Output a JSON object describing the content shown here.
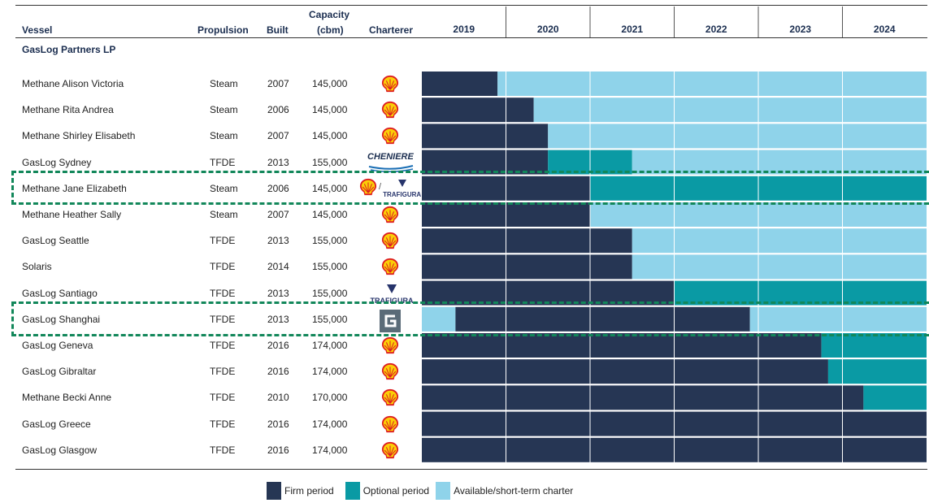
{
  "header": {
    "vessel": "Vessel",
    "propulsion": "Propulsion",
    "built": "Built",
    "capacity_line1": "Capacity",
    "capacity_line2": "(cbm)",
    "charterer": "Charterer"
  },
  "section_title": "GasLog Partners LP",
  "legend": {
    "firm": "Firm period",
    "optional": "Optional period",
    "available": "Available/short-term charter"
  },
  "colors": {
    "firm": "#263654",
    "optional": "#0a9aa4",
    "available": "#8fd3ea",
    "highlight": "#12875a",
    "shell_red": "#dd1d21",
    "shell_yellow": "#fbce07"
  },
  "vessels": [
    {
      "name": "Methane Alison Victoria",
      "propulsion": "Steam",
      "built": "2007",
      "capacity": "145,000",
      "charterer_logo": "shell-logo"
    },
    {
      "name": "Methane Rita Andrea",
      "propulsion": "Steam",
      "built": "2006",
      "capacity": "145,000",
      "charterer_logo": "shell-logo"
    },
    {
      "name": "Methane Shirley Elisabeth",
      "propulsion": "Steam",
      "built": "2007",
      "capacity": "145,000",
      "charterer_logo": "shell-logo"
    },
    {
      "name": "GasLog Sydney",
      "propulsion": "TFDE",
      "built": "2013",
      "capacity": "155,000",
      "charterer_logo": "cheniere-logo"
    },
    {
      "name": "Methane Jane Elizabeth",
      "propulsion": "Steam",
      "built": "2006",
      "capacity": "145,000",
      "charterer_logo": "shell-trafigura-logo"
    },
    {
      "name": "Methane Heather Sally",
      "propulsion": "Steam",
      "built": "2007",
      "capacity": "145,000",
      "charterer_logo": "shell-logo"
    },
    {
      "name": "GasLog Seattle",
      "propulsion": "TFDE",
      "built": "2013",
      "capacity": "155,000",
      "charterer_logo": "shell-logo"
    },
    {
      "name": "Solaris",
      "propulsion": "TFDE",
      "built": "2014",
      "capacity": "155,000",
      "charterer_logo": "shell-logo"
    },
    {
      "name": "GasLog Santiago",
      "propulsion": "TFDE",
      "built": "2013",
      "capacity": "155,000",
      "charterer_logo": "trafigura-logo"
    },
    {
      "name": "GasLog Shanghai",
      "propulsion": "TFDE",
      "built": "2013",
      "capacity": "155,000",
      "charterer_logo": "gaslog-logo"
    },
    {
      "name": "GasLog Geneva",
      "propulsion": "TFDE",
      "built": "2016",
      "capacity": "174,000",
      "charterer_logo": "shell-logo"
    },
    {
      "name": "GasLog Gibraltar",
      "propulsion": "TFDE",
      "built": "2016",
      "capacity": "174,000",
      "charterer_logo": "shell-logo"
    },
    {
      "name": "Methane Becki Anne",
      "propulsion": "TFDE",
      "built": "2010",
      "capacity": "170,000",
      "charterer_logo": "shell-logo"
    },
    {
      "name": "GasLog Greece",
      "propulsion": "TFDE",
      "built": "2016",
      "capacity": "174,000",
      "charterer_logo": "shell-logo"
    },
    {
      "name": "GasLog Glasgow",
      "propulsion": "TFDE",
      "built": "2016",
      "capacity": "174,000",
      "charterer_logo": "shell-logo"
    }
  ],
  "logo_text": {
    "cheniere": "CHENIERE",
    "trafigura": "TRAFIGURA"
  },
  "highlighted_vessels": [
    "Methane Jane Elizabeth",
    "GasLog Shanghai"
  ],
  "chart_data": {
    "type": "gantt",
    "x_unit": "year",
    "x_range": [
      2019,
      2025
    ],
    "years": [
      "2019",
      "2020",
      "2021",
      "2022",
      "2023",
      "2024"
    ],
    "categories": [
      "firm",
      "optional",
      "available"
    ],
    "rows": [
      {
        "vessel": "Methane Alison Victoria",
        "segments": [
          {
            "type": "firm",
            "start": 2019.0,
            "end": 2019.9
          },
          {
            "type": "available",
            "start": 2019.9,
            "end": 2025.0
          }
        ]
      },
      {
        "vessel": "Methane Rita Andrea",
        "segments": [
          {
            "type": "firm",
            "start": 2019.0,
            "end": 2020.33
          },
          {
            "type": "available",
            "start": 2020.33,
            "end": 2025.0
          }
        ]
      },
      {
        "vessel": "Methane Shirley Elisabeth",
        "segments": [
          {
            "type": "firm",
            "start": 2019.0,
            "end": 2020.5
          },
          {
            "type": "available",
            "start": 2020.5,
            "end": 2025.0
          }
        ]
      },
      {
        "vessel": "GasLog Sydney",
        "segments": [
          {
            "type": "firm",
            "start": 2019.0,
            "end": 2020.5
          },
          {
            "type": "optional",
            "start": 2020.5,
            "end": 2021.5
          },
          {
            "type": "available",
            "start": 2021.5,
            "end": 2025.0
          }
        ]
      },
      {
        "vessel": "Methane Jane Elizabeth",
        "segments": [
          {
            "type": "firm",
            "start": 2019.0,
            "end": 2021.0
          },
          {
            "type": "optional",
            "start": 2021.0,
            "end": 2025.0
          }
        ]
      },
      {
        "vessel": "Methane Heather Sally",
        "segments": [
          {
            "type": "firm",
            "start": 2019.0,
            "end": 2021.0
          },
          {
            "type": "available",
            "start": 2021.0,
            "end": 2025.0
          }
        ]
      },
      {
        "vessel": "GasLog Seattle",
        "segments": [
          {
            "type": "firm",
            "start": 2019.0,
            "end": 2021.5
          },
          {
            "type": "available",
            "start": 2021.5,
            "end": 2025.0
          }
        ]
      },
      {
        "vessel": "Solaris",
        "segments": [
          {
            "type": "firm",
            "start": 2019.0,
            "end": 2021.5
          },
          {
            "type": "available",
            "start": 2021.5,
            "end": 2025.0
          }
        ]
      },
      {
        "vessel": "GasLog Santiago",
        "segments": [
          {
            "type": "firm",
            "start": 2019.0,
            "end": 2022.0
          },
          {
            "type": "optional",
            "start": 2022.0,
            "end": 2025.0
          }
        ]
      },
      {
        "vessel": "GasLog Shanghai",
        "segments": [
          {
            "type": "available",
            "start": 2019.0,
            "end": 2019.4
          },
          {
            "type": "firm",
            "start": 2019.4,
            "end": 2022.9
          },
          {
            "type": "available",
            "start": 2022.9,
            "end": 2025.0
          }
        ]
      },
      {
        "vessel": "GasLog Geneva",
        "segments": [
          {
            "type": "firm",
            "start": 2019.0,
            "end": 2023.75
          },
          {
            "type": "optional",
            "start": 2023.75,
            "end": 2025.0
          }
        ]
      },
      {
        "vessel": "GasLog Gibraltar",
        "segments": [
          {
            "type": "firm",
            "start": 2019.0,
            "end": 2023.83
          },
          {
            "type": "optional",
            "start": 2023.83,
            "end": 2025.0
          }
        ]
      },
      {
        "vessel": "Methane Becki Anne",
        "segments": [
          {
            "type": "firm",
            "start": 2019.0,
            "end": 2024.25
          },
          {
            "type": "optional",
            "start": 2024.25,
            "end": 2025.0
          }
        ]
      },
      {
        "vessel": "GasLog Greece",
        "segments": [
          {
            "type": "firm",
            "start": 2019.0,
            "end": 2025.0
          }
        ]
      },
      {
        "vessel": "GasLog Glasgow",
        "segments": [
          {
            "type": "firm",
            "start": 2019.0,
            "end": 2025.0
          }
        ]
      }
    ]
  }
}
